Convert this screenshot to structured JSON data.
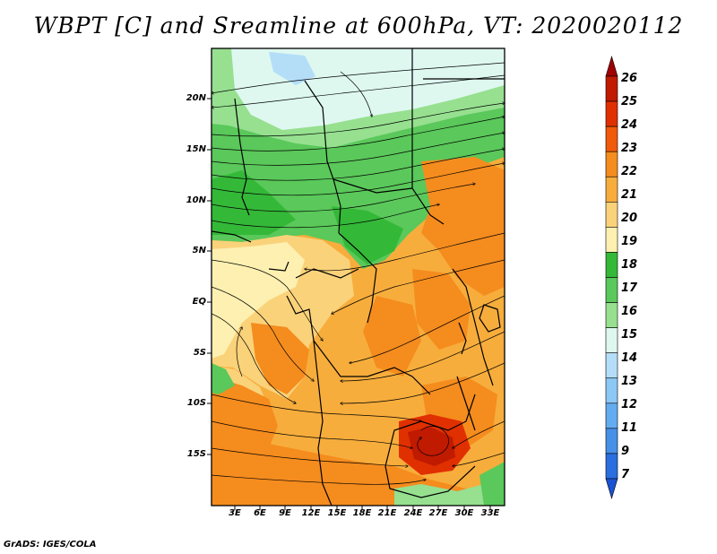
{
  "title": "WBPT [C] and Sreamline at 600hPa, VT: 2020020112",
  "footer": "GrADS: IGES/COLA",
  "axes": {
    "lat_labels": [
      "20N",
      "15N",
      "10N",
      "5N",
      "EQ",
      "5S",
      "10S",
      "15S"
    ],
    "lon_labels": [
      "3E",
      "6E",
      "9E",
      "12E",
      "15E",
      "18E",
      "21E",
      "24E",
      "27E",
      "30E",
      "33E"
    ]
  },
  "colorbar": {
    "labels": [
      "26",
      "25",
      "24",
      "23",
      "22",
      "21",
      "20",
      "19",
      "18",
      "17",
      "16",
      "15",
      "14",
      "13",
      "12",
      "11",
      "9",
      "7"
    ],
    "colors": [
      "#a00000",
      "#c01a00",
      "#e03000",
      "#f05a0a",
      "#f58c1e",
      "#f7ad3c",
      "#fad27a",
      "#fdf0b0",
      "#34b838",
      "#5ac85a",
      "#96e090",
      "#def8f0",
      "#b4def8",
      "#8cc8f5",
      "#64acf0",
      "#4690e8",
      "#2a6ee0",
      "#1a52d2"
    ]
  },
  "legend_colors": {
    "orange_warm": "#f58c1e",
    "light_orange": "#f7ad3c",
    "tan": "#fad27a",
    "pale_yellow": "#fdf0b0",
    "green_dark": "#34b838",
    "green_mid": "#5ac85a",
    "green_light": "#96e090",
    "cyan_pale": "#def8f0",
    "blue_light": "#b4def8",
    "red_orange": "#e03000"
  }
}
